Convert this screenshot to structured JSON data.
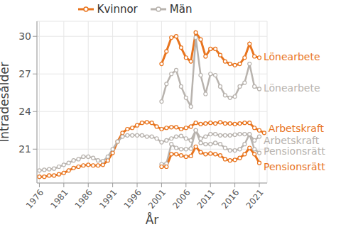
{
  "chart_data": {
    "type": "line",
    "x_label": "År",
    "y_label": "Inträdesålder",
    "x": [
      1976,
      1977,
      1978,
      1979,
      1980,
      1981,
      1982,
      1983,
      1984,
      1985,
      1986,
      1987,
      1988,
      1989,
      1990,
      1991,
      1992,
      1993,
      1994,
      1995,
      1996,
      1997,
      1998,
      1999,
      2000,
      2001,
      2002,
      2003,
      2004,
      2005,
      2006,
      2007,
      2008,
      2009,
      2010,
      2011,
      2012,
      2013,
      2014,
      2015,
      2016,
      2017,
      2018,
      2019,
      2020,
      2021,
      2022
    ],
    "xlim": [
      1975.5,
      2022.6
    ],
    "xticks": [
      1976,
      1981,
      1986,
      1991,
      1996,
      2001,
      2006,
      2011,
      2016,
      2021
    ],
    "ylim": [
      18.3,
      31.2
    ],
    "yticks": [
      21,
      24,
      27,
      30
    ],
    "grid": true,
    "marker": "circle",
    "legend": "top",
    "legend_items": [
      {
        "name": "Kvinnor",
        "color": "#e8741e"
      },
      {
        "name": "Män",
        "color": "#b8b3ae"
      }
    ],
    "series": [
      {
        "name": "Lönearbete",
        "color": "#e8741e",
        "values": [
          null,
          null,
          null,
          null,
          null,
          null,
          null,
          null,
          null,
          null,
          null,
          null,
          null,
          null,
          null,
          null,
          null,
          null,
          null,
          null,
          null,
          null,
          null,
          null,
          null,
          27.8,
          28.8,
          29.9,
          30.0,
          29.1,
          28.3,
          28.0,
          30.3,
          29.75,
          28.4,
          29.0,
          29.0,
          28.5,
          28.0,
          27.8,
          27.7,
          27.8,
          28.3,
          29.4,
          28.4,
          28.3,
          null
        ]
      },
      {
        "name": "Lönearbete",
        "color": "#b8b3ae",
        "values": [
          null,
          null,
          null,
          null,
          null,
          null,
          null,
          null,
          null,
          null,
          null,
          null,
          null,
          null,
          null,
          null,
          null,
          null,
          null,
          null,
          null,
          null,
          null,
          null,
          null,
          24.8,
          26.2,
          27.0,
          27.3,
          26.0,
          25.1,
          24.4,
          29.9,
          26.9,
          25.4,
          27.0,
          26.9,
          26.0,
          25.3,
          25.1,
          25.2,
          26.0,
          26.3,
          27.8,
          26.0,
          25.8,
          null
        ]
      },
      {
        "name": "Arbetskraft",
        "color": "#e8741e",
        "values": [
          18.8,
          18.8,
          18.9,
          18.9,
          19.0,
          19.1,
          19.3,
          19.5,
          19.6,
          19.7,
          19.75,
          19.7,
          19.7,
          19.75,
          20.1,
          20.7,
          21.6,
          22.3,
          22.6,
          22.7,
          22.9,
          23.1,
          23.15,
          23.1,
          22.8,
          22.6,
          22.7,
          22.75,
          22.75,
          22.6,
          22.7,
          22.8,
          23.1,
          23.0,
          23.05,
          23.1,
          23.05,
          23.15,
          23.05,
          23.05,
          23.0,
          23.05,
          23.1,
          23.1,
          22.7,
          22.5,
          22.3
        ]
      },
      {
        "name": "Arbetskraft",
        "color": "#b8b3ae",
        "values": [
          19.3,
          19.35,
          19.4,
          19.45,
          19.6,
          19.75,
          19.9,
          20.1,
          20.2,
          20.4,
          20.4,
          20.3,
          20.1,
          20.05,
          20.4,
          21.0,
          21.6,
          22.0,
          22.1,
          22.1,
          22.1,
          22.1,
          22.0,
          22.0,
          21.85,
          21.55,
          21.7,
          21.85,
          22.0,
          22.05,
          21.85,
          21.7,
          22.5,
          21.85,
          22.0,
          22.2,
          22.2,
          22.1,
          22.1,
          22.1,
          22.15,
          22.2,
          22.2,
          22.15,
          21.7,
          22.0,
          null
        ]
      },
      {
        "name": "Pensionsrätt",
        "color": "#b8b3ae",
        "values": [
          null,
          null,
          null,
          null,
          null,
          null,
          null,
          null,
          null,
          null,
          null,
          null,
          null,
          null,
          null,
          null,
          null,
          null,
          null,
          null,
          null,
          null,
          null,
          null,
          null,
          19.8,
          19.85,
          21.4,
          21.1,
          21.0,
          21.0,
          21.05,
          22.5,
          21.5,
          21.4,
          21.4,
          21.5,
          21.4,
          21.1,
          20.9,
          20.9,
          21.0,
          21.4,
          22.2,
          21.0,
          20.7,
          null
        ]
      },
      {
        "name": "Pensionsrätt",
        "color": "#e8741e",
        "values": [
          null,
          null,
          null,
          null,
          null,
          null,
          null,
          null,
          null,
          null,
          null,
          null,
          null,
          null,
          null,
          null,
          null,
          null,
          null,
          null,
          null,
          null,
          null,
          null,
          null,
          19.6,
          19.6,
          20.6,
          20.6,
          20.5,
          20.4,
          20.45,
          21.2,
          20.75,
          20.6,
          20.65,
          20.6,
          20.5,
          20.2,
          20.1,
          20.15,
          20.3,
          20.6,
          21.1,
          20.6,
          19.9,
          null
        ]
      }
    ]
  }
}
